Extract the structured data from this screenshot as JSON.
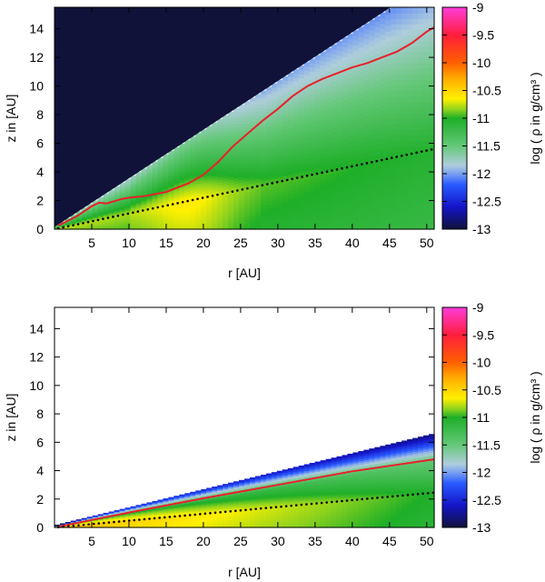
{
  "chart_data": [
    {
      "type": "heatmap",
      "panel": "top",
      "xlabel": "r [AU]",
      "ylabel": "z in [AU]",
      "xlim": [
        0,
        51
      ],
      "ylim": [
        0,
        15.5
      ],
      "xticks": [
        "5",
        "10",
        "15",
        "20",
        "25",
        "30",
        "35",
        "40",
        "45",
        "50"
      ],
      "xtick_values": [
        5,
        10,
        15,
        20,
        25,
        30,
        35,
        40,
        45,
        50
      ],
      "yticks": [
        "0",
        "2",
        "4",
        "6",
        "8",
        "10",
        "12",
        "14"
      ],
      "ytick_values": [
        0,
        2,
        4,
        6,
        8,
        10,
        12,
        14
      ],
      "colorbar": {
        "label": "log ( ρ in g/cm³ )",
        "range": [
          -13,
          -9
        ],
        "ticks": [
          "-9",
          "-9.5",
          "-10",
          "-10.5",
          "-11",
          "-11.5",
          "-12",
          "-12.5",
          "-13"
        ],
        "tick_values": [
          -9,
          -9.5,
          -10,
          -10.5,
          -11,
          -11.5,
          -12,
          -12.5,
          -13
        ]
      },
      "grid_upper_slope": 0.34,
      "background_value": -13,
      "series": [
        {
          "name": "red-contour",
          "color": "#e8202a",
          "style": "solid",
          "x": [
            0.5,
            3,
            5,
            6,
            7,
            8,
            9,
            10,
            12,
            15,
            18,
            20,
            22,
            24,
            26,
            28,
            30,
            32,
            34,
            36,
            38,
            40,
            42,
            44,
            46,
            48,
            50,
            51
          ],
          "y": [
            0.25,
            0.9,
            1.6,
            1.85,
            1.8,
            1.95,
            2.1,
            2.2,
            2.3,
            2.6,
            3.2,
            3.8,
            4.7,
            5.8,
            6.7,
            7.6,
            8.4,
            9.3,
            10.0,
            10.5,
            10.9,
            11.3,
            11.6,
            12.0,
            12.4,
            13.0,
            13.8,
            14.1
          ]
        },
        {
          "name": "black-dotted",
          "color": "#000000",
          "style": "dotted",
          "x": [
            0.5,
            51
          ],
          "y": [
            0.05,
            5.6
          ]
        }
      ]
    },
    {
      "type": "heatmap",
      "panel": "bottom",
      "xlabel": "r [AU]",
      "ylabel": "z in [AU]",
      "xlim": [
        0,
        51
      ],
      "ylim": [
        0,
        15.5
      ],
      "xticks": [
        "5",
        "10",
        "15",
        "20",
        "25",
        "30",
        "35",
        "40",
        "45",
        "50"
      ],
      "xtick_values": [
        5,
        10,
        15,
        20,
        25,
        30,
        35,
        40,
        45,
        50
      ],
      "yticks": [
        "0",
        "2",
        "4",
        "6",
        "8",
        "10",
        "12",
        "14"
      ],
      "ytick_values": [
        0,
        2,
        4,
        6,
        8,
        10,
        12,
        14
      ],
      "colorbar": {
        "label": "log ( ρ in g/cm³ )",
        "range": [
          -13,
          -9
        ],
        "ticks": [
          "-9",
          "-9.5",
          "-10",
          "-10.5",
          "-11",
          "-11.5",
          "-12",
          "-12.5",
          "-13"
        ],
        "tick_values": [
          -9,
          -9.5,
          -10,
          -10.5,
          -11,
          -11.5,
          -12,
          -12.5,
          -13
        ]
      },
      "grid_upper_slope": 0.127,
      "background_value": null,
      "series": [
        {
          "name": "red-contour",
          "color": "#e8202a",
          "style": "solid",
          "x": [
            0.5,
            10,
            20,
            30,
            40,
            51
          ],
          "y": [
            0.05,
            1.05,
            2.05,
            3.0,
            3.95,
            4.8
          ]
        },
        {
          "name": "black-dotted",
          "color": "#000000",
          "style": "dotted",
          "x": [
            0.5,
            51
          ],
          "y": [
            0.02,
            2.45
          ]
        }
      ]
    }
  ]
}
